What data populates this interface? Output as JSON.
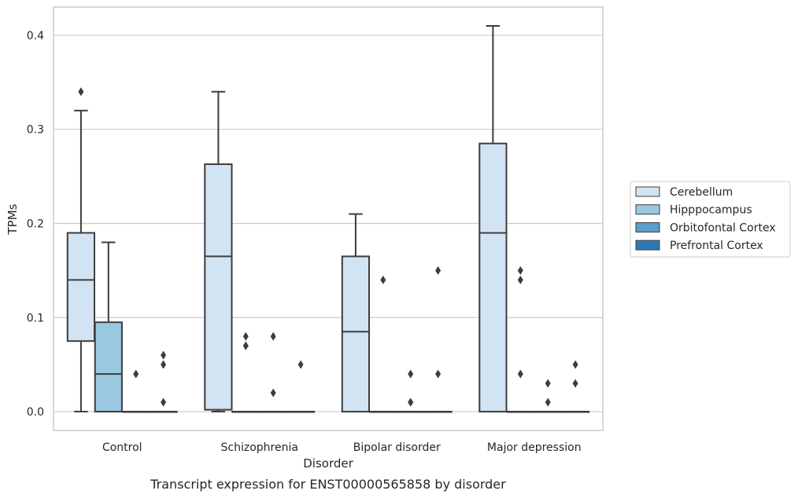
{
  "chart_data": {
    "type": "box",
    "caption": "Transcript expression for ENST00000565858 by disorder",
    "xlabel": "Disorder",
    "ylabel": "TPMs",
    "ylim": [
      -0.02,
      0.43
    ],
    "yticks": [
      0.0,
      0.1,
      0.2,
      0.3,
      0.4
    ],
    "ytick_labels": [
      "0.0",
      "0.1",
      "0.2",
      "0.3",
      "0.4"
    ],
    "grid": "horizontal",
    "legend_position": "right",
    "categories": [
      "Control",
      "Schizophrenia",
      "Bipolar disorder",
      "Major depression"
    ],
    "series": [
      {
        "name": "Cerebellum",
        "color": "#d2e3f3",
        "boxes": [
          {
            "whislo": 0.0,
            "q1": 0.075,
            "med": 0.14,
            "q3": 0.19,
            "whishi": 0.32,
            "fliers": [
              0.34
            ]
          },
          {
            "whislo": 0.0,
            "q1": 0.002,
            "med": 0.165,
            "q3": 0.263,
            "whishi": 0.34,
            "fliers": []
          },
          {
            "whislo": 0.0,
            "q1": 0.0,
            "med": 0.085,
            "q3": 0.165,
            "whishi": 0.21,
            "fliers": []
          },
          {
            "whislo": 0.0,
            "q1": 0.0,
            "med": 0.19,
            "q3": 0.285,
            "whishi": 0.41,
            "fliers": []
          }
        ]
      },
      {
        "name": "Hipppocampus",
        "color": "#9ac8e0",
        "boxes": [
          {
            "whislo": 0.0,
            "q1": 0.0,
            "med": 0.04,
            "q3": 0.095,
            "whishi": 0.18,
            "fliers": []
          },
          {
            "whislo": 0.0,
            "q1": 0.0,
            "med": 0.0,
            "q3": 0.0,
            "whishi": 0.0,
            "fliers": [
              0.08,
              0.07,
              0.07
            ]
          },
          {
            "whislo": 0.0,
            "q1": 0.0,
            "med": 0.0,
            "q3": 0.0,
            "whishi": 0.0,
            "fliers": [
              0.14
            ]
          },
          {
            "whislo": 0.0,
            "q1": 0.0,
            "med": 0.0,
            "q3": 0.0,
            "whishi": 0.0,
            "fliers": [
              0.15,
              0.14,
              0.04
            ]
          }
        ]
      },
      {
        "name": "Orbitofontal Cortex",
        "color": "#5a9ec9",
        "boxes": [
          {
            "whislo": 0.0,
            "q1": 0.0,
            "med": 0.0,
            "q3": 0.0,
            "whishi": 0.0,
            "fliers": [
              0.04
            ]
          },
          {
            "whislo": 0.0,
            "q1": 0.0,
            "med": 0.0,
            "q3": 0.0,
            "whishi": 0.0,
            "fliers": [
              0.02,
              0.08
            ]
          },
          {
            "whislo": 0.0,
            "q1": 0.0,
            "med": 0.0,
            "q3": 0.0,
            "whishi": 0.0,
            "fliers": [
              0.04,
              0.01,
              0.01
            ]
          },
          {
            "whislo": 0.0,
            "q1": 0.0,
            "med": 0.0,
            "q3": 0.0,
            "whishi": 0.0,
            "fliers": [
              0.03,
              0.01
            ]
          }
        ]
      },
      {
        "name": "Prefrontal Cortex",
        "color": "#2c7bb6",
        "boxes": [
          {
            "whislo": 0.0,
            "q1": 0.0,
            "med": 0.0,
            "q3": 0.0,
            "whishi": 0.0,
            "fliers": [
              0.06,
              0.05,
              0.01
            ]
          },
          {
            "whislo": 0.0,
            "q1": 0.0,
            "med": 0.0,
            "q3": 0.0,
            "whishi": 0.0,
            "fliers": [
              0.05
            ]
          },
          {
            "whislo": 0.0,
            "q1": 0.0,
            "med": 0.0,
            "q3": 0.0,
            "whishi": 0.0,
            "fliers": [
              0.15,
              0.04
            ]
          },
          {
            "whislo": 0.0,
            "q1": 0.0,
            "med": 0.0,
            "q3": 0.0,
            "whishi": 0.0,
            "fliers": [
              0.05,
              0.03
            ]
          }
        ]
      }
    ],
    "legend": [
      "Cerebellum",
      "Hipppocampus",
      "Orbitofontal Cortex",
      "Prefrontal Cortex"
    ]
  }
}
